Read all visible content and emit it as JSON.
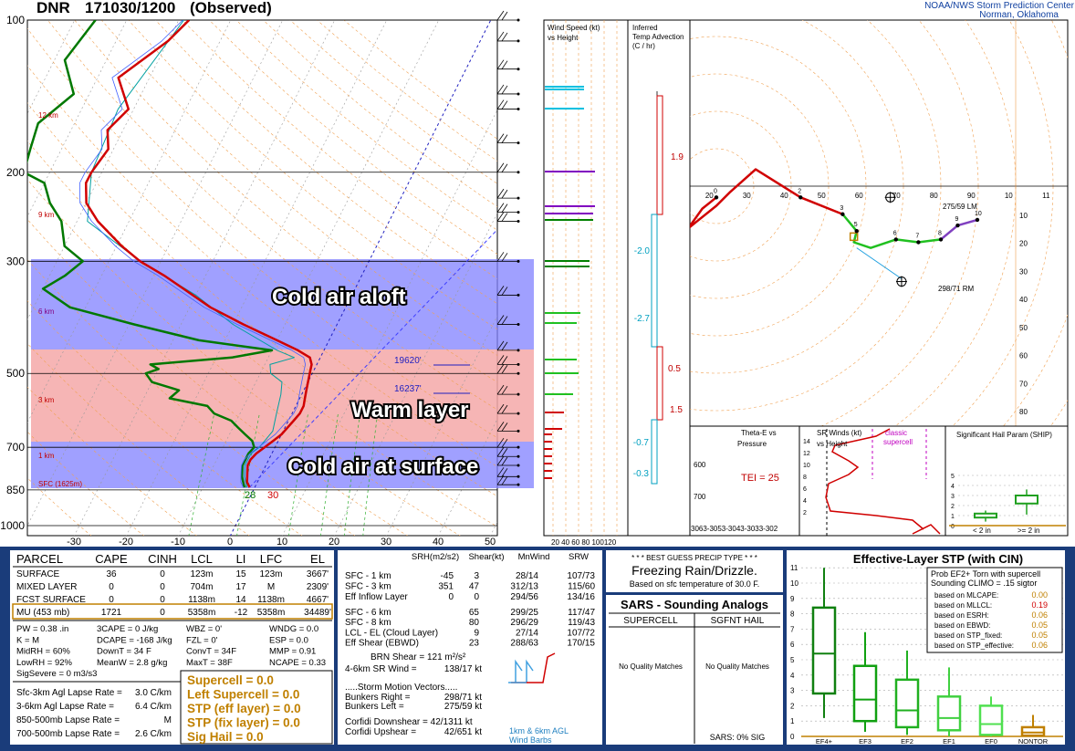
{
  "header": {
    "station": "DNR",
    "datetime": "171030/1200",
    "status": "(Observed)",
    "org_line1": "NOAA/NWS Storm Prediction Center",
    "org_line2": "Norman, Oklahoma"
  },
  "colors": {
    "temperature": "#d00000",
    "dewpoint": "#007800",
    "wetbulb": "#00a0a0",
    "cold_band": "#8080ff",
    "warm_band": "#f4a0a0",
    "panel_border": "#1a3c7a",
    "accent_gold": "#c08000"
  },
  "skewt": {
    "pressure_levels": [
      "100",
      "200",
      "300",
      "500",
      "700",
      "850",
      "1000"
    ],
    "temp_ticks": [
      "-30",
      "-20",
      "-10",
      "0",
      "10",
      "20",
      "30",
      "40",
      "50"
    ],
    "height_labels": [
      "12 km",
      "9 km",
      "6 km",
      "3 km",
      "1 km",
      "SFC (1625m)"
    ],
    "sfc_temp_label": "30",
    "sfc_dew_label": "28",
    "freezing_labels": [
      "19620'",
      "16237'"
    ],
    "annotations": {
      "cold_aloft": "Cold air aloft",
      "warm_layer": "Warm layer",
      "cold_surface": "Cold air at surface"
    }
  },
  "chart_data": {
    "type": "line",
    "title": "DNR 171030/1200 (Observed)",
    "xlabel": "",
    "ylabel": "",
    "y_scale": "log pressure (mb)",
    "ylim": [
      1050,
      100
    ],
    "xlim": [
      -35,
      50
    ],
    "series": [
      {
        "name": "Temperature",
        "pressure": [
          840,
          820,
          800,
          780,
          760,
          740,
          720,
          700,
          680,
          660,
          640,
          620,
          600,
          580,
          560,
          540,
          520,
          500,
          480,
          465,
          450,
          430,
          400,
          370,
          340,
          320,
          300,
          280,
          250,
          230,
          210,
          200,
          180,
          165,
          150,
          130,
          110,
          100
        ],
        "values": [
          -1,
          -2,
          -2.5,
          -3,
          -3.5,
          -3.5,
          -3,
          -2,
          -1,
          0,
          0.5,
          1,
          1.5,
          1.5,
          1,
          0.5,
          0,
          -0.5,
          -1,
          -2,
          -5,
          -10,
          -18,
          -26,
          -33,
          -38,
          -44,
          -49,
          -56,
          -60,
          -62,
          -62,
          -61,
          -63,
          -61,
          -66,
          -60,
          -58
        ]
      },
      {
        "name": "Dewpoint",
        "pressure": [
          840,
          800,
          760,
          720,
          700,
          680,
          660,
          640,
          620,
          600,
          580,
          560,
          540,
          520,
          500,
          490,
          480,
          465,
          450,
          430,
          400,
          370,
          340,
          320,
          300,
          280,
          250,
          230,
          210,
          200,
          180,
          160,
          140,
          120,
          100
        ],
        "values": [
          -2,
          -3.5,
          -4.5,
          -4.5,
          -4,
          -5,
          -7,
          -9,
          -11,
          -15,
          -17,
          -25,
          -24,
          -30,
          -32,
          -30,
          -32,
          -17,
          -10,
          -25,
          -39,
          -53,
          -60,
          -57,
          -55,
          -60,
          -63,
          -67,
          -70,
          -75,
          -76,
          -77,
          -73,
          -78,
          -76
        ]
      },
      {
        "name": "Wetbulb",
        "pressure": [
          840,
          800,
          760,
          720,
          700,
          650,
          600,
          550,
          520,
          500,
          480,
          465,
          450,
          400,
          350,
          300,
          250,
          200,
          150,
          100
        ],
        "values": [
          -1.5,
          -3,
          -4,
          -4,
          -3,
          -2,
          -3,
          -4,
          -5,
          -8,
          -9,
          -5,
          -9,
          -20,
          -30,
          -44,
          -58,
          -62,
          -63,
          -59
        ]
      }
    ]
  },
  "wind_panel": {
    "title1": "Wind Speed (kt)",
    "title2": "vs Height",
    "scale": "20 40 60 80 100120"
  },
  "advection_panel": {
    "title1": "Inferred",
    "title2": "Temp Advection",
    "title3": "(C / hr)",
    "values": [
      "1.9",
      "-2.0",
      "-2.7",
      "0.5",
      "1.5",
      "-0.7",
      "-0.3"
    ]
  },
  "hodograph": {
    "ticks_x": [
      "10",
      "20",
      "30",
      "40",
      "50",
      "60",
      "70",
      "80",
      "90",
      "10",
      "11"
    ],
    "ticks_y": [
      "10",
      "20",
      "30",
      "40",
      "50",
      "60",
      "70",
      "80"
    ],
    "lm_label": "275/59 LM",
    "rm_label": "298/71 RM",
    "point_labels": [
      "0",
      "2",
      "3",
      "5",
      "6",
      "7",
      "8",
      "9",
      "10"
    ]
  },
  "thetae_panel": {
    "title1": "Theta-E vs",
    "title2": "Pressure",
    "tei": "TEI = 25",
    "p_ticks": [
      "600",
      "700"
    ],
    "x_ticks": "3063-3053-3043-3033-302"
  },
  "srwind_panel": {
    "title1": "SR Winds (kt)",
    "title2": "vs Height",
    "classic": "classic",
    "supercell": "supercell",
    "h_ticks": [
      "14",
      "12",
      "10",
      "8",
      "6",
      "4",
      "2"
    ]
  },
  "ship_panel": {
    "title": "Significant Hail Param (SHIP)",
    "y_ticks": [
      "5",
      "4",
      "3",
      "2",
      "1",
      "0"
    ],
    "cat_left": "< 2 in",
    "cat_right": ">= 2 in"
  },
  "parcel_table": {
    "headers": [
      "PARCEL",
      "CAPE",
      "CINH",
      "LCL",
      "LI",
      "LFC",
      "EL"
    ],
    "rows": [
      [
        "SURFACE",
        "36",
        "0",
        "123m",
        "15",
        "123m",
        "3667'"
      ],
      [
        "MIXED LAYER",
        "0",
        "0",
        "704m",
        "17",
        "M",
        "2309'"
      ],
      [
        "FCST SURFACE",
        "0",
        "0",
        "1138m",
        "14",
        "1138m",
        "4667'"
      ],
      [
        "MU   (453 mb)",
        "1721",
        "0",
        "5358m",
        "-12",
        "5358m",
        "34489'"
      ]
    ]
  },
  "thermo_indices": {
    "col1": [
      "PW = 0.38 .in",
      "K = M",
      "MidRH = 60%",
      "LowRH = 92%",
      "SigSevere = 0 m3/s3"
    ],
    "col2": [
      "3CAPE = 0 J/kg",
      "DCAPE = -168 J/kg",
      "DownT = 34 F",
      "MeanW = 2.8 g/kg"
    ],
    "col3": [
      "WBZ = 0'",
      "FZL = 0'",
      "ConvT = 34F",
      "MaxT = 38F"
    ],
    "col4": [
      "WNDG = 0.0",
      "ESP = 0.0",
      "MMP = 0.91",
      "NCAPE = 0.33"
    ]
  },
  "lapse_rates": [
    [
      "Sfc-3km Agl Lapse Rate =",
      "3.0 C/km"
    ],
    [
      "3-6km Agl Lapse Rate =",
      "6.4 C/km"
    ],
    [
      "850-500mb Lapse Rate =",
      "M"
    ],
    [
      "700-500mb Lapse Rate =",
      "2.6 C/km"
    ]
  ],
  "composite": [
    "Supercell = 0.0",
    "Left Supercell = 0.0",
    "STP (eff layer) = 0.0",
    "STP (fix layer) = 0.0",
    "Sig Hail = 0.0"
  ],
  "kinematics": {
    "headers": [
      "SRH(m2/s2)",
      "Shear(kt)",
      "MnWind",
      "SRW"
    ],
    "rows": [
      [
        "SFC - 1 km",
        "-45",
        "3",
        "28/14",
        "107/73"
      ],
      [
        "SFC - 3 km",
        "351",
        "47",
        "312/13",
        "115/60"
      ],
      [
        "Eff Inflow Layer",
        "0",
        "0",
        "294/56",
        "134/16"
      ],
      [
        "SFC - 6 km",
        "",
        "65",
        "299/25",
        "117/47"
      ],
      [
        "SFC - 8 km",
        "",
        "80",
        "296/29",
        "119/43"
      ],
      [
        "LCL - EL (Cloud Layer)",
        "",
        "9",
        "27/14",
        "107/72"
      ],
      [
        "Eff Shear (EBWD)",
        "",
        "23",
        "288/63",
        "170/15"
      ]
    ],
    "brn_shear": "BRN Shear = 121 m²/s²",
    "sr_wind": "4-6km SR Wind =",
    "sr_wind_val": "138/17 kt",
    "storm_motion_title": ".....Storm Motion Vectors.....",
    "bunkers_right": "Bunkers Right =",
    "bunkers_right_val": "298/71 kt",
    "bunkers_left": "Bunkers Left =",
    "bunkers_left_val": "275/59 kt",
    "corfidi_down": "Corfidi Downshear = 42/1311 kt",
    "corfidi_up": "Corfidi Upshear =",
    "corfidi_up_val": "42/651 kt",
    "barb_caption1": "1km & 6km AGL",
    "barb_caption2": "Wind Barbs"
  },
  "precip": {
    "title": "* * * BEST GUESS PRECIP TYPE * * *",
    "type": "Freezing Rain/Drizzle.",
    "basis": "Based on sfc temperature of 30.0 F."
  },
  "sars": {
    "title": "SARS - Sounding Analogs",
    "col1": "SUPERCELL",
    "col2": "SGFNT HAIL",
    "no_match": "No Quality Matches",
    "footer": "SARS:  0% SIG"
  },
  "stp": {
    "title": "Effective-Layer STP (with CIN)",
    "y_ticks": [
      "11",
      "10",
      "9",
      "8",
      "7",
      "6",
      "5",
      "4",
      "3",
      "2",
      "1",
      "0"
    ],
    "categories": [
      "EF4+",
      "EF3",
      "EF2",
      "EF1",
      "EF0",
      "NONTOR"
    ],
    "legend_title1": "Prob EF2+ Torn with supercell",
    "legend_title2": "Sounding CLIMO = .15 sigtor",
    "legend_rows": [
      [
        "based on MLCAPE:",
        "0.00"
      ],
      [
        "based on MLLCL:",
        "0.19"
      ],
      [
        "based on ESRH:",
        "0.06"
      ],
      [
        "based on EBWD:",
        "0.05"
      ],
      [
        "based on STP_fixed:",
        "0.05"
      ],
      [
        "based on STP_effective:",
        "0.06"
      ]
    ]
  }
}
